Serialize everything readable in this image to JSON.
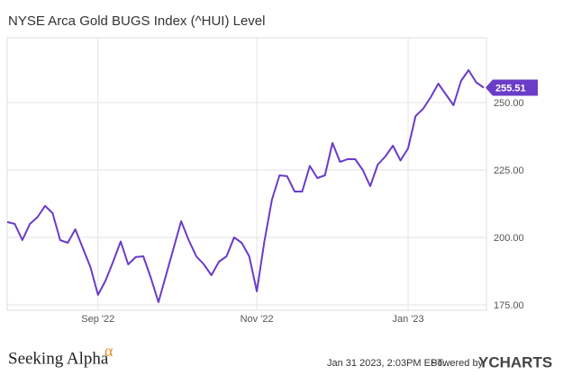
{
  "chart_data": {
    "type": "line",
    "title": "NYSE Arca Gold BUGS Index (^HUI) Level",
    "categories": [
      null,
      null,
      null,
      null,
      null,
      null,
      null,
      null,
      null,
      null,
      null,
      null,
      "Sep '22",
      null,
      null,
      null,
      null,
      null,
      null,
      null,
      null,
      null,
      null,
      null,
      null,
      null,
      null,
      null,
      null,
      null,
      null,
      null,
      null,
      "Nov '22",
      null,
      null,
      null,
      null,
      null,
      null,
      null,
      null,
      null,
      null,
      null,
      null,
      null,
      null,
      null,
      null,
      null,
      null,
      null,
      "Jan '23",
      null,
      null,
      null,
      null,
      null,
      null,
      null,
      null,
      null,
      null
    ],
    "series": [
      {
        "name": "NYSE Arca Gold BUGS Index (^HUI) Level",
        "color": "#6a3cc8",
        "values": [
          205.7,
          205,
          199,
          205,
          207.5,
          211.7,
          209,
          199,
          198,
          203,
          196,
          189,
          178.7,
          184,
          191,
          198.5,
          190,
          192.7,
          193,
          185,
          176,
          186,
          196,
          206,
          199,
          193,
          190,
          186,
          191,
          193,
          200,
          198,
          193,
          180,
          198.5,
          214,
          223,
          222.7,
          217,
          217,
          226.5,
          222,
          223,
          235,
          228,
          229,
          229,
          225,
          219,
          227,
          230,
          234,
          228.5,
          233,
          245,
          247.7,
          252,
          257,
          253,
          249,
          258,
          262,
          257.5,
          255.51
        ]
      }
    ],
    "ylim": [
      173,
      274
    ],
    "yticks": [
      {
        "value": 175,
        "label": "175.00"
      },
      {
        "value": 200,
        "label": "200.00"
      },
      {
        "value": 225,
        "label": "225.00"
      },
      {
        "value": 250,
        "label": "250.00"
      }
    ],
    "grid": true,
    "source": "Seeking Alpha",
    "source_mark": "α",
    "timestamp": "Jan 31 2023, 2:03PM EST.",
    "powered_by": "Powered by",
    "brand": "YCHARTS"
  }
}
